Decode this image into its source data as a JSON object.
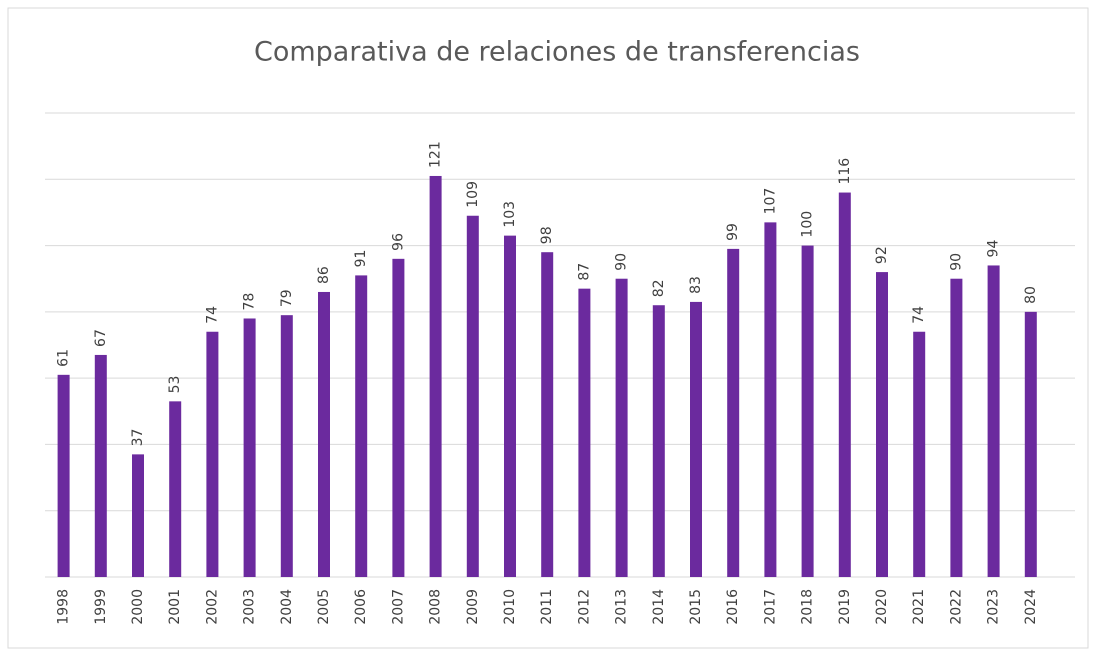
{
  "chart_data": {
    "type": "bar",
    "title": "Comparativa de relaciones de transferencias",
    "categories": [
      "1998",
      "1999",
      "2000",
      "2001",
      "2002",
      "2003",
      "2004",
      "2005",
      "2006",
      "2007",
      "2008",
      "2009",
      "2010",
      "2011",
      "2012",
      "2013",
      "2014",
      "2015",
      "2016",
      "2017",
      "2018",
      "2019",
      "2020",
      "2021",
      "2022",
      "2023",
      "2024"
    ],
    "values": [
      61,
      67,
      37,
      53,
      74,
      78,
      79,
      86,
      91,
      96,
      121,
      109,
      103,
      98,
      87,
      90,
      82,
      83,
      99,
      107,
      100,
      116,
      92,
      74,
      90,
      94,
      80
    ],
    "color": "#6b2a9e",
    "ylim": [
      0,
      140
    ],
    "yticks": [
      0,
      20,
      40,
      60,
      80,
      100,
      120,
      140
    ],
    "grid": true
  }
}
